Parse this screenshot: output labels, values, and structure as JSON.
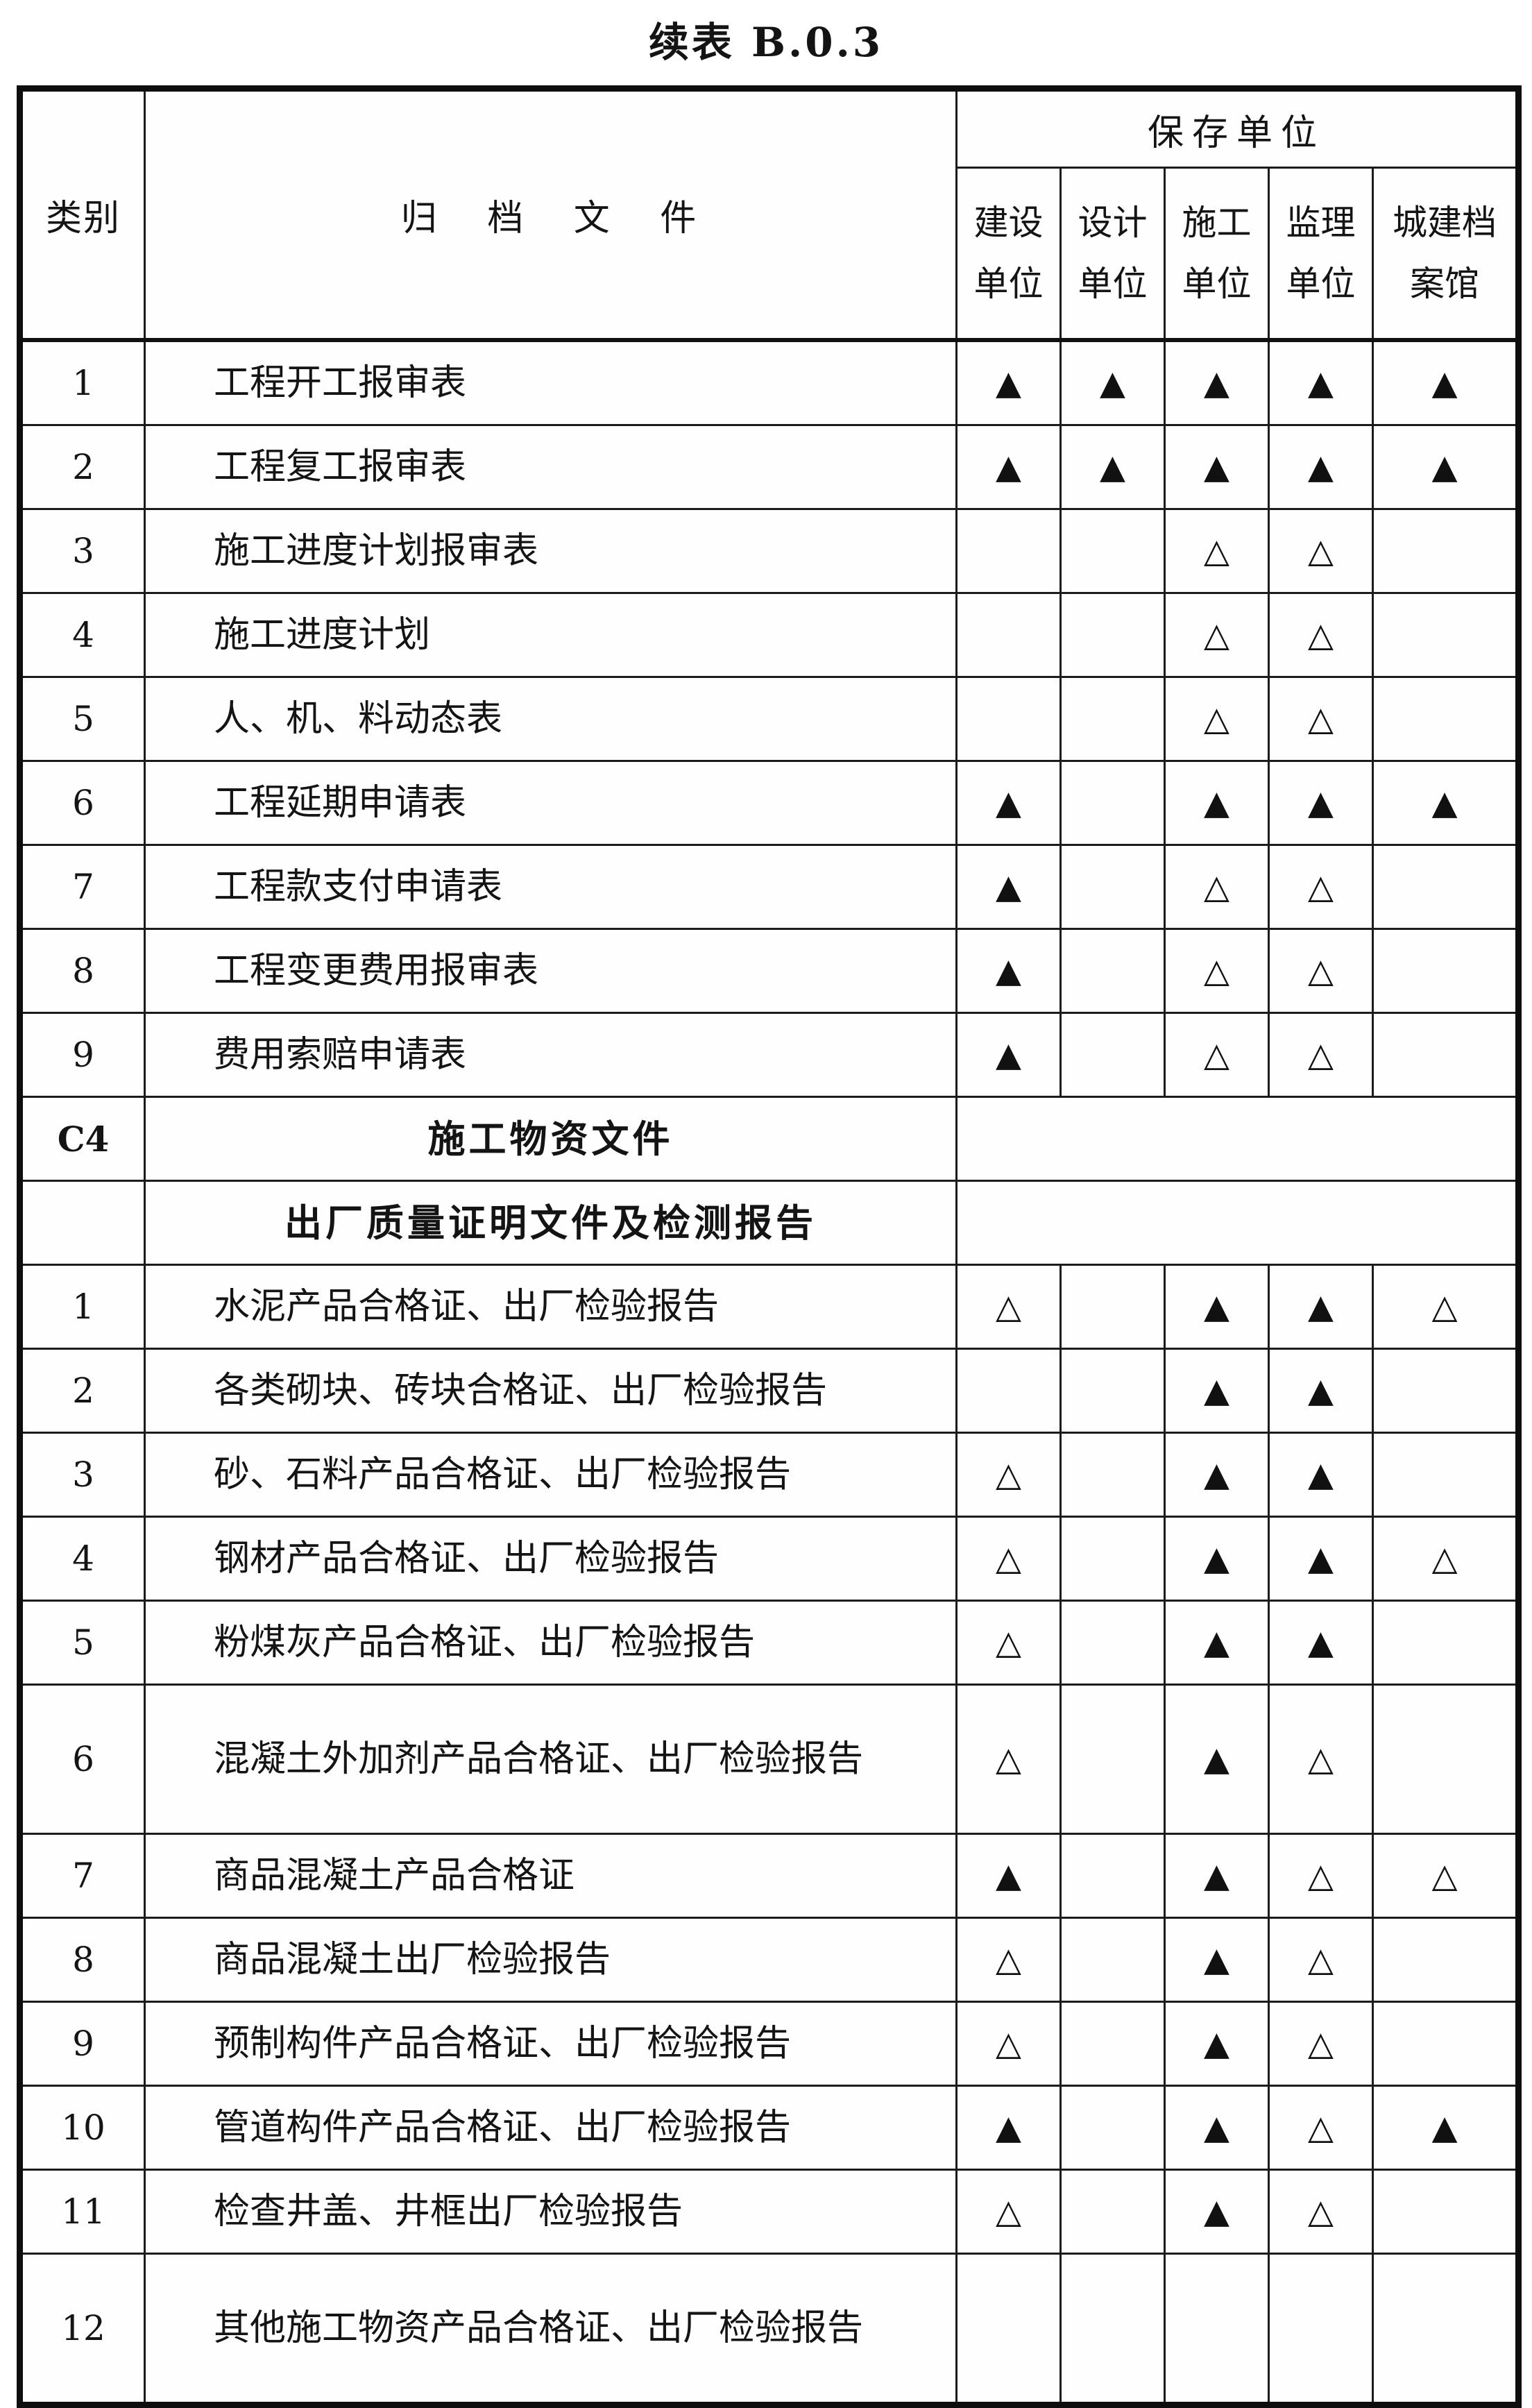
{
  "title": "续表 B.0.3",
  "table": {
    "col_headers": {
      "category": "类别",
      "documents": "归 档 文 件",
      "storage": "保存单位",
      "units": [
        {
          "line1": "建设",
          "line2": "单位"
        },
        {
          "line1": "设计",
          "line2": "单位"
        },
        {
          "line1": "施工",
          "line2": "单位"
        },
        {
          "line1": "监理",
          "line2": "单位"
        },
        {
          "line1": "城建档",
          "line2": "案馆"
        }
      ]
    },
    "legend": {
      "filled": "▲",
      "hollow": "△",
      "none": ""
    },
    "rows": [
      {
        "no": "1",
        "label": "工程开工报审表",
        "style": "normal",
        "tall": false,
        "merged": false,
        "marks": [
          "filled",
          "filled",
          "filled",
          "filled",
          "filled"
        ]
      },
      {
        "no": "2",
        "label": "工程复工报审表",
        "style": "normal",
        "tall": false,
        "merged": false,
        "marks": [
          "filled",
          "filled",
          "filled",
          "filled",
          "filled"
        ]
      },
      {
        "no": "3",
        "label": "施工进度计划报审表",
        "style": "normal",
        "tall": false,
        "merged": false,
        "marks": [
          "none",
          "none",
          "hollow",
          "hollow",
          "none"
        ]
      },
      {
        "no": "4",
        "label": "施工进度计划",
        "style": "normal",
        "tall": false,
        "merged": false,
        "marks": [
          "none",
          "none",
          "hollow",
          "hollow",
          "none"
        ]
      },
      {
        "no": "5",
        "label": "人、机、料动态表",
        "style": "normal",
        "tall": false,
        "merged": false,
        "marks": [
          "none",
          "none",
          "hollow",
          "hollow",
          "none"
        ]
      },
      {
        "no": "6",
        "label": "工程延期申请表",
        "style": "normal",
        "tall": false,
        "merged": false,
        "marks": [
          "filled",
          "none",
          "filled",
          "filled",
          "filled"
        ]
      },
      {
        "no": "7",
        "label": "工程款支付申请表",
        "style": "normal",
        "tall": false,
        "merged": false,
        "marks": [
          "filled",
          "none",
          "hollow",
          "hollow",
          "none"
        ]
      },
      {
        "no": "8",
        "label": "工程变更费用报审表",
        "style": "normal",
        "tall": false,
        "merged": false,
        "marks": [
          "filled",
          "none",
          "hollow",
          "hollow",
          "none"
        ]
      },
      {
        "no": "9",
        "label": "费用索赔申请表",
        "style": "normal",
        "tall": false,
        "merged": false,
        "marks": [
          "filled",
          "none",
          "hollow",
          "hollow",
          "none"
        ]
      },
      {
        "no": "C4",
        "label": "施工物资文件",
        "style": "section",
        "tall": false,
        "merged": true,
        "marks": []
      },
      {
        "no": "",
        "label": "出厂质量证明文件及检测报告",
        "style": "subsection",
        "tall": false,
        "merged": true,
        "marks": []
      },
      {
        "no": "1",
        "label": "水泥产品合格证、出厂检验报告",
        "style": "normal",
        "tall": false,
        "merged": false,
        "marks": [
          "hollow",
          "none",
          "filled",
          "filled",
          "hollow"
        ]
      },
      {
        "no": "2",
        "label": "各类砌块、砖块合格证、出厂检验报告",
        "style": "normal",
        "tall": false,
        "merged": false,
        "marks": [
          "none",
          "none",
          "filled",
          "filled",
          "none"
        ]
      },
      {
        "no": "3",
        "label": "砂、石料产品合格证、出厂检验报告",
        "style": "normal",
        "tall": false,
        "merged": false,
        "marks": [
          "hollow",
          "none",
          "filled",
          "filled",
          "none"
        ]
      },
      {
        "no": "4",
        "label": "钢材产品合格证、出厂检验报告",
        "style": "normal",
        "tall": false,
        "merged": false,
        "marks": [
          "hollow",
          "none",
          "filled",
          "filled",
          "hollow"
        ]
      },
      {
        "no": "5",
        "label": "粉煤灰产品合格证、出厂检验报告",
        "style": "normal",
        "tall": false,
        "merged": false,
        "marks": [
          "hollow",
          "none",
          "filled",
          "filled",
          "none"
        ]
      },
      {
        "no": "6",
        "label": "混凝土外加剂产品合格证、出厂检验报告",
        "style": "normal",
        "tall": true,
        "merged": false,
        "marks": [
          "hollow",
          "none",
          "filled",
          "hollow",
          "none"
        ]
      },
      {
        "no": "7",
        "label": "商品混凝土产品合格证",
        "style": "normal",
        "tall": false,
        "merged": false,
        "marks": [
          "filled",
          "none",
          "filled",
          "hollow",
          "hollow"
        ]
      },
      {
        "no": "8",
        "label": "商品混凝土出厂检验报告",
        "style": "normal",
        "tall": false,
        "merged": false,
        "marks": [
          "hollow",
          "none",
          "filled",
          "hollow",
          "none"
        ]
      },
      {
        "no": "9",
        "label": "预制构件产品合格证、出厂检验报告",
        "style": "normal",
        "tall": false,
        "merged": false,
        "marks": [
          "hollow",
          "none",
          "filled",
          "hollow",
          "none"
        ]
      },
      {
        "no": "10",
        "label": "管道构件产品合格证、出厂检验报告",
        "style": "normal",
        "tall": false,
        "merged": false,
        "marks": [
          "filled",
          "none",
          "filled",
          "hollow",
          "filled"
        ]
      },
      {
        "no": "11",
        "label": "检查井盖、井框出厂检验报告",
        "style": "normal",
        "tall": false,
        "merged": false,
        "marks": [
          "hollow",
          "none",
          "filled",
          "hollow",
          "none"
        ]
      },
      {
        "no": "12",
        "label": "其他施工物资产品合格证、出厂检验报告",
        "style": "normal",
        "tall": true,
        "merged": false,
        "marks": [
          "none",
          "none",
          "none",
          "none",
          "none"
        ]
      }
    ]
  }
}
